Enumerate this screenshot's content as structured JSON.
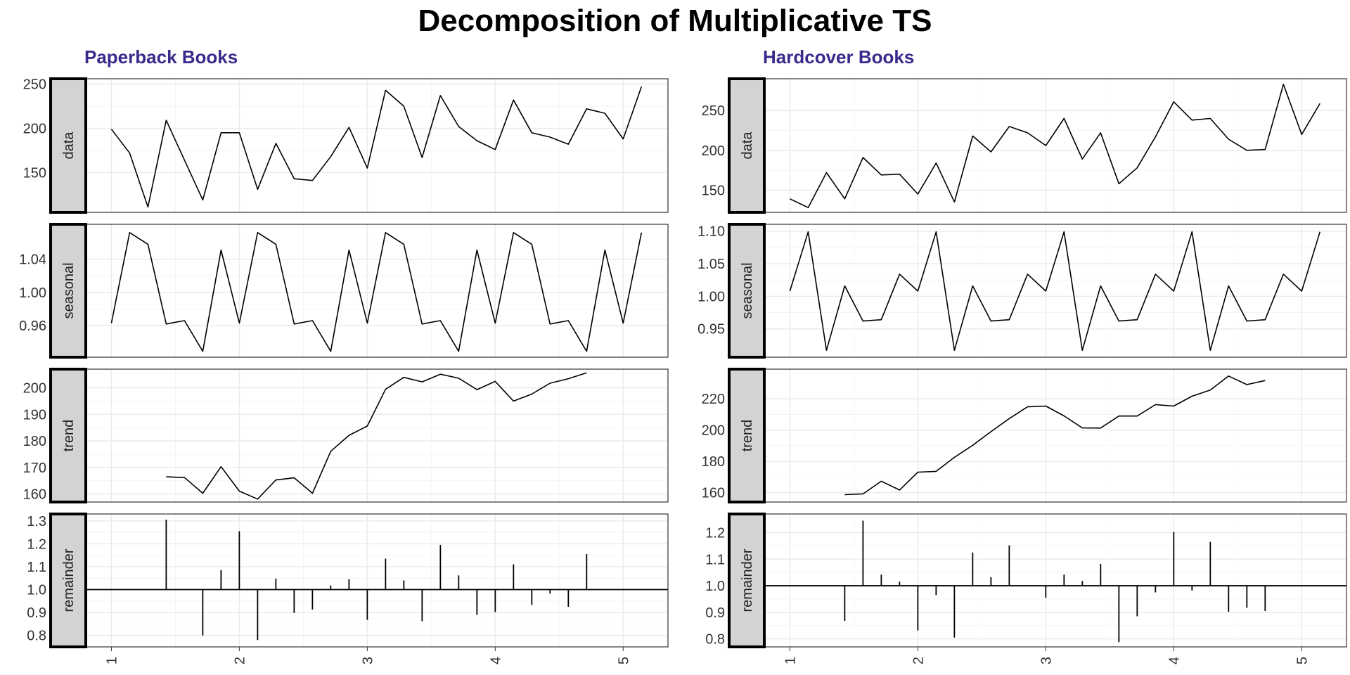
{
  "title": "Decomposition of Multiplicative TS",
  "colors": {
    "subtitle": "#3a2a8c",
    "strip_fill": "#d3d3d3",
    "line": "#000000",
    "grid": "#ebebeb"
  },
  "chart_data": [
    {
      "type": "line",
      "subtitle": "Paperback Books",
      "x_ticks": [
        "1",
        "2",
        "3",
        "4",
        "5"
      ],
      "xlim": [
        0.8,
        5.35
      ],
      "time": {
        "start": 1,
        "frequency": 7
      },
      "panels": [
        {
          "label": "data",
          "geom": "line",
          "ylim": [
            105,
            256
          ],
          "y_ticks": [
            150,
            200,
            250
          ],
          "values": [
            199,
            172,
            111,
            209,
            164,
            119,
            195,
            195,
            131,
            183,
            143,
            141,
            168,
            201,
            155,
            243,
            225,
            167,
            237,
            202,
            186,
            176,
            232,
            195,
            190,
            182,
            222,
            217,
            188,
            247
          ]
        },
        {
          "label": "seasonal",
          "geom": "line",
          "ylim": [
            0.922,
            1.082
          ],
          "y_ticks": [
            0.96,
            1.0,
            1.04
          ],
          "y_tick_labels": [
            "0.96",
            "1.00",
            "1.04"
          ],
          "values": [
            0.963,
            1.072,
            1.058,
            0.962,
            0.966,
            0.929,
            1.051,
            0.963,
            1.072,
            1.058,
            0.962,
            0.966,
            0.929,
            1.051,
            0.963,
            1.072,
            1.058,
            0.962,
            0.966,
            0.929,
            1.051,
            0.963,
            1.072,
            1.058,
            0.962,
            0.966,
            0.929,
            1.051,
            0.963,
            1.072
          ]
        },
        {
          "label": "trend",
          "geom": "line",
          "ylim": [
            157,
            207
          ],
          "y_ticks": [
            160,
            170,
            180,
            190,
            200
          ],
          "values": [
            null,
            null,
            null,
            166.5,
            166.2,
            160.3,
            170.3,
            161.1,
            158.1,
            165.3,
            166.1,
            160.3,
            176.1,
            182.1,
            185.6,
            199.4,
            203.9,
            202.2,
            205.1,
            203.6,
            199.3,
            202.4,
            195.0,
            197.6,
            201.7,
            203.4,
            205.6,
            null,
            null,
            null
          ]
        },
        {
          "label": "remainder",
          "geom": "segment",
          "baseline": 1.0,
          "ylim": [
            0.75,
            1.33
          ],
          "y_ticks": [
            0.8,
            0.9,
            1.0,
            1.1,
            1.2,
            1.3
          ],
          "y_tick_labels": [
            "0.8",
            "0.9",
            "1.0",
            "1.1",
            "1.2",
            "1.3"
          ],
          "values": [
            null,
            null,
            null,
            1.305,
            null,
            0.8,
            1.085,
            1.255,
            0.78,
            1.048,
            0.898,
            0.913,
            1.018,
            1.045,
            0.868,
            1.135,
            1.04,
            0.862,
            1.195,
            1.062,
            0.89,
            0.902,
            1.11,
            0.933,
            0.982,
            0.925,
            1.155,
            null,
            null,
            null
          ]
        }
      ]
    },
    {
      "type": "line",
      "subtitle": "Hardcover Books",
      "x_ticks": [
        "1",
        "2",
        "3",
        "4",
        "5"
      ],
      "xlim": [
        0.8,
        5.35
      ],
      "time": {
        "start": 1,
        "frequency": 7
      },
      "panels": [
        {
          "label": "data",
          "geom": "line",
          "ylim": [
            122,
            290
          ],
          "y_ticks": [
            150,
            200,
            250
          ],
          "values": [
            139,
            128,
            172,
            139,
            191,
            169,
            170,
            145,
            184,
            135,
            218,
            198,
            230,
            222,
            206,
            240,
            189,
            222,
            158,
            178,
            217,
            261,
            238,
            240,
            214,
            200,
            201,
            283,
            220,
            259
          ]
        },
        {
          "label": "seasonal",
          "geom": "line",
          "ylim": [
            0.9065,
            1.1105
          ],
          "y_ticks": [
            0.95,
            1.0,
            1.05,
            1.1
          ],
          "y_tick_labels": [
            "0.95",
            "1.00",
            "1.05",
            "1.10"
          ],
          "values": [
            1.008,
            1.099,
            0.917,
            1.016,
            0.962,
            0.964,
            1.034,
            1.008,
            1.099,
            0.917,
            1.016,
            0.962,
            0.964,
            1.034,
            1.008,
            1.099,
            0.917,
            1.016,
            0.962,
            0.964,
            1.034,
            1.008,
            1.099,
            0.917,
            1.016,
            0.962,
            0.964,
            1.034,
            1.008,
            1.099
          ]
        },
        {
          "label": "trend",
          "geom": "line",
          "ylim": [
            154,
            239
          ],
          "y_ticks": [
            160,
            180,
            200,
            220
          ],
          "values": [
            null,
            null,
            null,
            158.7,
            159.2,
            167.3,
            161.7,
            173.1,
            173.6,
            182.6,
            190.3,
            199.0,
            207.4,
            214.9,
            215.4,
            209.1,
            201.4,
            201.3,
            209.0,
            209.0,
            216.3,
            215.4,
            221.7,
            225.6,
            234.6,
            229.1,
            231.7,
            null,
            null,
            null
          ]
        },
        {
          "label": "remainder",
          "geom": "segment",
          "baseline": 1.0,
          "ylim": [
            0.77,
            1.27
          ],
          "y_ticks": [
            0.8,
            0.9,
            1.0,
            1.1,
            1.2
          ],
          "y_tick_labels": [
            "0.8",
            "0.9",
            "1.0",
            "1.1",
            "1.2"
          ],
          "values": [
            null,
            null,
            null,
            0.868,
            1.245,
            1.042,
            1.015,
            0.832,
            0.965,
            0.805,
            1.125,
            1.032,
            1.152,
            null,
            0.955,
            1.042,
            1.018,
            1.082,
            0.788,
            0.885,
            0.975,
            1.202,
            0.982,
            1.165,
            0.902,
            0.917,
            0.905,
            null,
            null,
            null
          ]
        }
      ]
    }
  ]
}
